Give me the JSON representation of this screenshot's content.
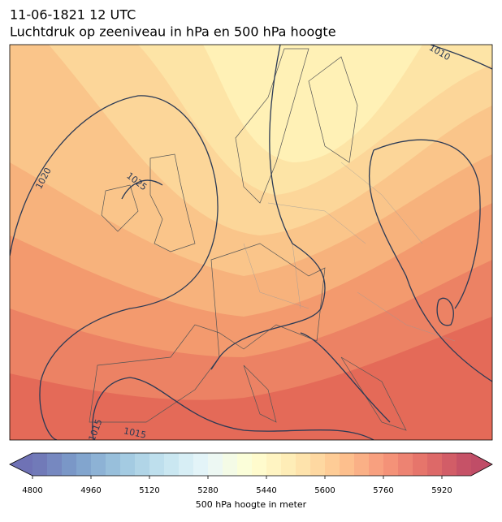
{
  "header": {
    "title": "11-06-1821 12 UTC",
    "subtitle": "Luchtdruk op zeeniveau in hPa en 500 hPa hoogte"
  },
  "map": {
    "isobar_labels": [
      1010,
      1020,
      1025,
      1015,
      1015
    ]
  },
  "colorbar": {
    "label": "500 hPa hoogte in meter",
    "lim": [
      4800,
      6000
    ],
    "ticks": [
      4800,
      4960,
      5120,
      5280,
      5440,
      5600,
      5760,
      5920
    ],
    "levels": [
      4800,
      4840,
      4880,
      4920,
      4960,
      5000,
      5040,
      5080,
      5120,
      5160,
      5200,
      5240,
      5280,
      5320,
      5360,
      5400,
      5440,
      5480,
      5520,
      5560,
      5600,
      5640,
      5680,
      5720,
      5760,
      5800,
      5840,
      5880,
      5920,
      5960,
      6000
    ],
    "cmap": "RdYlBu_r",
    "extend": "both"
  }
}
